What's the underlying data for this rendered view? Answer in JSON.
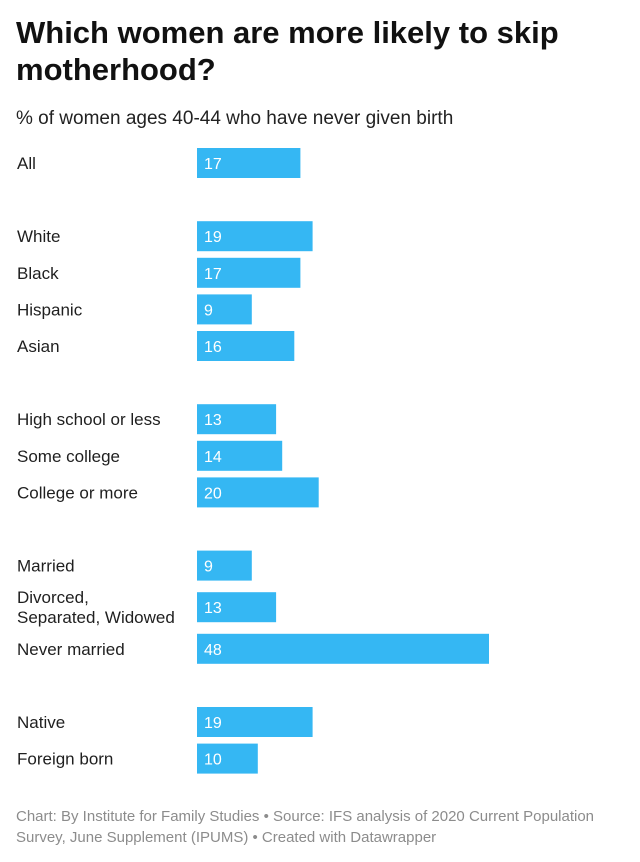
{
  "title": "Which women are more likely to skip motherhood?",
  "subtitle": "% of women ages 40-44 who have never given birth",
  "footer": "Chart: By Institute for Family Studies • Source: IFS analysis of 2020 Current Population Survey, June Supplement (IPUMS) • Created with Datawrapper",
  "bar_color": "#35b7f3",
  "chart_data": {
    "type": "bar",
    "orientation": "horizontal",
    "groups": [
      {
        "categories": [
          "All"
        ],
        "values": [
          17
        ]
      },
      {
        "categories": [
          "White",
          "Black",
          "Hispanic",
          "Asian"
        ],
        "values": [
          19,
          17,
          9,
          16
        ]
      },
      {
        "categories": [
          "High school or less",
          "Some college",
          "College or more"
        ],
        "values": [
          13,
          14,
          20
        ]
      },
      {
        "categories": [
          "Married",
          "Divorced, Separated, Widowed",
          "Never married"
        ],
        "values": [
          9,
          13,
          48
        ]
      },
      {
        "categories": [
          "Native",
          "Foreign born"
        ],
        "values": [
          19,
          10
        ]
      }
    ],
    "xlim": [
      0,
      48
    ],
    "grid": false,
    "legend": "none"
  }
}
